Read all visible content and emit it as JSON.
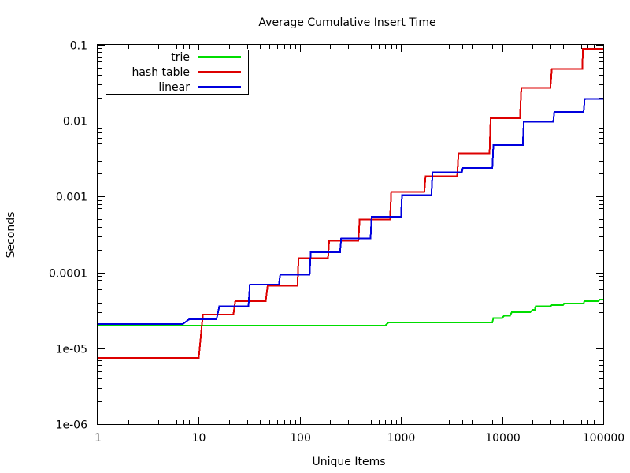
{
  "chart_data": {
    "type": "line",
    "title": "Average Cumulative Insert Time",
    "xlabel": "Unique Items",
    "ylabel": "Seconds",
    "x_scale": "log",
    "y_scale": "log",
    "xlim": [
      1,
      100000
    ],
    "ylim": [
      1e-06,
      0.1
    ],
    "x_ticks": [
      1,
      10,
      100,
      1000,
      10000,
      100000
    ],
    "x_tick_labels": [
      "1",
      "10",
      "100",
      "1000",
      "10000",
      "100000"
    ],
    "y_ticks": [
      1e-06,
      1e-05,
      0.0001,
      0.001,
      0.01,
      0.1
    ],
    "y_tick_labels": [
      "1e-06",
      "1e-05",
      "0.0001",
      "0.001",
      "0.01",
      "0.1"
    ],
    "grid": false,
    "legend_position": "top-left",
    "series": [
      {
        "name": "trie",
        "color": "#00dd00",
        "points": [
          [
            1,
            2e-05
          ],
          [
            700,
            2e-05
          ],
          [
            750,
            2.2e-05
          ],
          [
            8000,
            2.2e-05
          ],
          [
            8200,
            2.5e-05
          ],
          [
            10000,
            2.5e-05
          ],
          [
            10500,
            2.7e-05
          ],
          [
            12000,
            2.7e-05
          ],
          [
            12500,
            3e-05
          ],
          [
            19000,
            3e-05
          ],
          [
            20000,
            3.2e-05
          ],
          [
            21000,
            3.2e-05
          ],
          [
            21500,
            3.6e-05
          ],
          [
            30000,
            3.6e-05
          ],
          [
            31000,
            3.7e-05
          ],
          [
            40000,
            3.7e-05
          ],
          [
            41000,
            3.9e-05
          ],
          [
            64000,
            3.9e-05
          ],
          [
            65000,
            4.2e-05
          ],
          [
            90000,
            4.2e-05
          ],
          [
            92000,
            4.4e-05
          ],
          [
            100000,
            4.4e-05
          ]
        ]
      },
      {
        "name": "hash table",
        "color": "#dd0000",
        "points": [
          [
            1,
            7.5e-06
          ],
          [
            10,
            7.5e-06
          ],
          [
            11,
            2.8e-05
          ],
          [
            22,
            2.8e-05
          ],
          [
            23,
            4.2e-05
          ],
          [
            46,
            4.2e-05
          ],
          [
            48,
            6.7e-05
          ],
          [
            95,
            6.7e-05
          ],
          [
            97,
            0.000155
          ],
          [
            190,
            0.000155
          ],
          [
            195,
            0.00026
          ],
          [
            380,
            0.00026
          ],
          [
            390,
            0.0005
          ],
          [
            780,
            0.0005
          ],
          [
            800,
            0.00115
          ],
          [
            1700,
            0.00115
          ],
          [
            1750,
            0.00185
          ],
          [
            3600,
            0.00185
          ],
          [
            3700,
            0.0037
          ],
          [
            7500,
            0.0037
          ],
          [
            7700,
            0.0108
          ],
          [
            15000,
            0.0108
          ],
          [
            15500,
            0.027
          ],
          [
            30000,
            0.027
          ],
          [
            31000,
            0.048
          ],
          [
            62000,
            0.048
          ],
          [
            63000,
            0.089
          ],
          [
            100000,
            0.089
          ]
        ]
      },
      {
        "name": "linear",
        "color": "#0000dd",
        "points": [
          [
            1,
            2.1e-05
          ],
          [
            7,
            2.1e-05
          ],
          [
            8,
            2.4e-05
          ],
          [
            15,
            2.4e-05
          ],
          [
            16,
            3.6e-05
          ],
          [
            31,
            3.6e-05
          ],
          [
            32,
            6.9e-05
          ],
          [
            62,
            6.9e-05
          ],
          [
            64,
            9.3e-05
          ],
          [
            125,
            9.3e-05
          ],
          [
            128,
            0.000185
          ],
          [
            250,
            0.000185
          ],
          [
            256,
            0.00028
          ],
          [
            500,
            0.00028
          ],
          [
            512,
            0.00054
          ],
          [
            1000,
            0.00054
          ],
          [
            1024,
            0.00105
          ],
          [
            2000,
            0.00105
          ],
          [
            2048,
            0.0021
          ],
          [
            4000,
            0.0021
          ],
          [
            4096,
            0.0024
          ],
          [
            8000,
            0.0024
          ],
          [
            8192,
            0.0048
          ],
          [
            16000,
            0.0048
          ],
          [
            16384,
            0.0097
          ],
          [
            32000,
            0.0097
          ],
          [
            32768,
            0.013
          ],
          [
            64000,
            0.013
          ],
          [
            65536,
            0.0195
          ],
          [
            100000,
            0.0195
          ]
        ]
      }
    ]
  }
}
